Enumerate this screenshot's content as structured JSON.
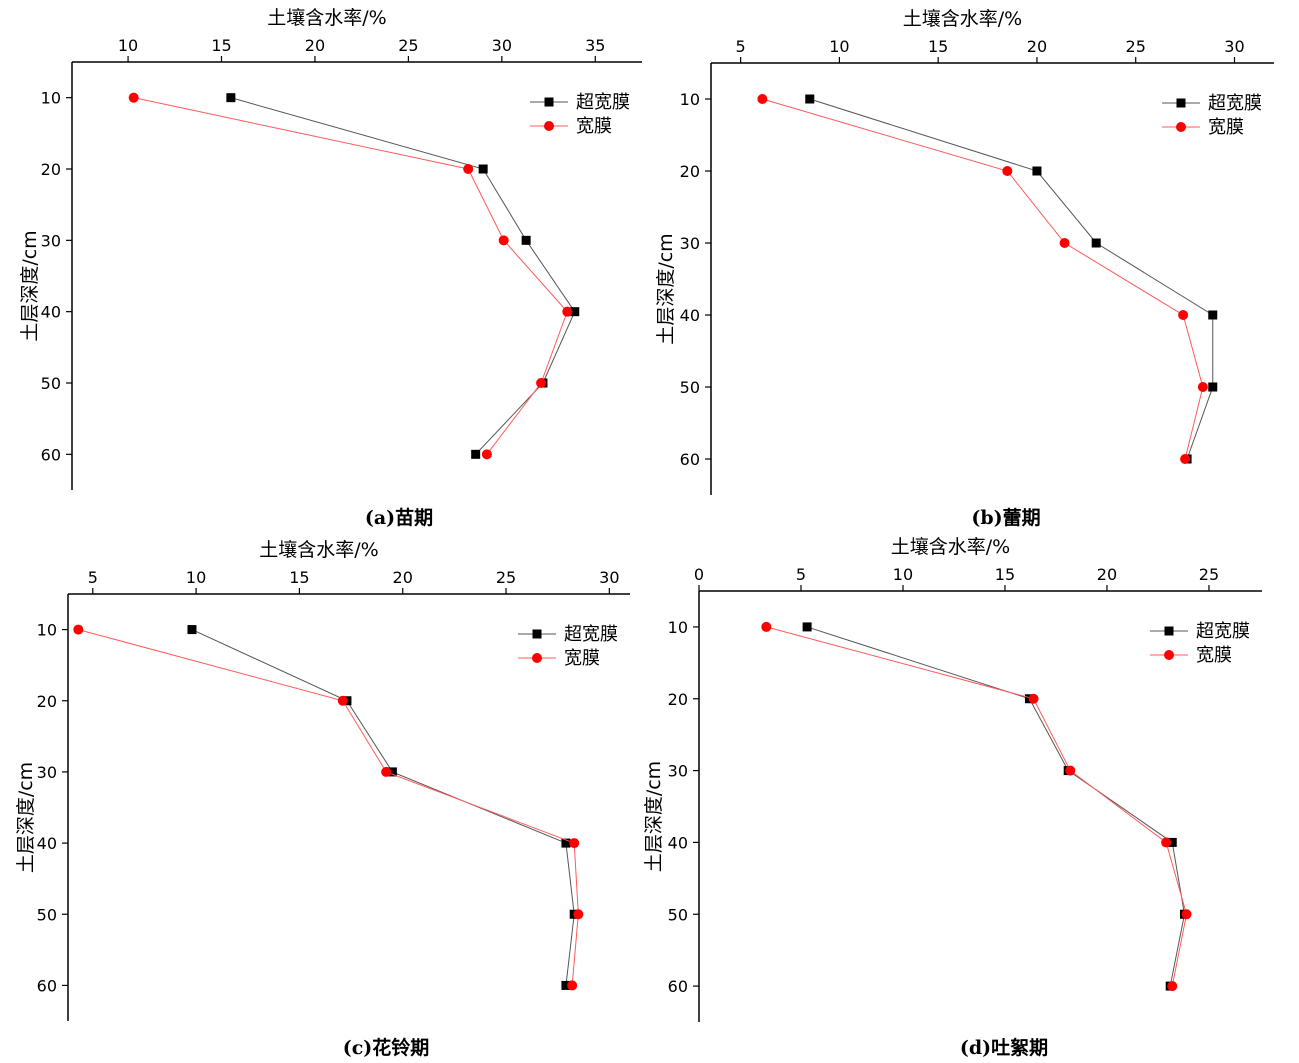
{
  "chart_data": [
    {
      "type": "line",
      "caption": "(a)苗期",
      "xlabel": "土壤含水率/%",
      "ylabel": "土层深度/cm",
      "xlim": [
        7,
        37.5
      ],
      "xticks": [
        10,
        15,
        20,
        25,
        30,
        35
      ],
      "ylim": [
        5,
        65
      ],
      "yticks": [
        10,
        20,
        30,
        40,
        50,
        60
      ],
      "legend_position": "top-right",
      "series": [
        {
          "name": "超宽膜",
          "color": "#000000",
          "marker": "square",
          "x": [
            15.5,
            29.0,
            31.3,
            33.9,
            32.2,
            28.6
          ],
          "y": [
            10,
            20,
            30,
            40,
            50,
            60
          ]
        },
        {
          "name": "宽膜",
          "color": "#ff0000",
          "marker": "circle",
          "x": [
            10.3,
            28.2,
            30.1,
            33.5,
            32.1,
            29.2
          ],
          "y": [
            10,
            20,
            30,
            40,
            50,
            60
          ]
        }
      ]
    },
    {
      "type": "line",
      "caption": "(b)蕾期",
      "xlabel": "土壤含水率/%",
      "ylabel": "土层深度/cm",
      "xlim": [
        3.5,
        32
      ],
      "xticks": [
        5,
        10,
        15,
        20,
        25,
        30
      ],
      "ylim": [
        5,
        65
      ],
      "yticks": [
        10,
        20,
        30,
        40,
        50,
        60
      ],
      "legend_position": "top-right",
      "series": [
        {
          "name": "超宽膜",
          "color": "#000000",
          "marker": "square",
          "x": [
            8.5,
            20.0,
            23.0,
            28.9,
            28.9,
            27.6
          ],
          "y": [
            10,
            20,
            30,
            40,
            50,
            60
          ]
        },
        {
          "name": "宽膜",
          "color": "#ff0000",
          "marker": "circle",
          "x": [
            6.1,
            18.5,
            21.4,
            27.4,
            28.4,
            27.5
          ],
          "y": [
            10,
            20,
            30,
            40,
            50,
            60
          ]
        }
      ]
    },
    {
      "type": "line",
      "caption": "(c)花铃期",
      "xlabel": "土壤含水率/%",
      "ylabel": "土层深度/cm",
      "xlim": [
        3.8,
        31
      ],
      "xticks": [
        5,
        10,
        15,
        20,
        25,
        30
      ],
      "ylim": [
        5,
        65
      ],
      "yticks": [
        10,
        20,
        30,
        40,
        50,
        60
      ],
      "legend_position": "top-right",
      "series": [
        {
          "name": "超宽膜",
          "color": "#000000",
          "marker": "square",
          "x": [
            9.8,
            17.3,
            19.5,
            27.9,
            28.3,
            27.9
          ],
          "y": [
            10,
            20,
            30,
            40,
            50,
            60
          ]
        },
        {
          "name": "宽膜",
          "color": "#ff0000",
          "marker": "circle",
          "x": [
            4.3,
            17.1,
            19.2,
            28.3,
            28.5,
            28.2
          ],
          "y": [
            10,
            20,
            30,
            40,
            50,
            60
          ]
        }
      ]
    },
    {
      "type": "line",
      "caption": "(d)吐絮期",
      "xlabel": "土壤含水率/%",
      "ylabel": "土层深度/cm",
      "xlim": [
        0,
        27.6
      ],
      "xticks": [
        0,
        5,
        10,
        15,
        20,
        25
      ],
      "ylim": [
        5,
        65
      ],
      "yticks": [
        10,
        20,
        30,
        40,
        50,
        60
      ],
      "legend_position": "top-right",
      "series": [
        {
          "name": "超宽膜",
          "color": "#000000",
          "marker": "square",
          "x": [
            5.3,
            16.2,
            18.1,
            23.2,
            23.8,
            23.1
          ],
          "y": [
            10,
            20,
            30,
            40,
            50,
            60
          ]
        },
        {
          "name": "宽膜",
          "color": "#ff0000",
          "marker": "circle",
          "x": [
            3.3,
            16.4,
            18.2,
            22.9,
            23.9,
            23.2
          ],
          "y": [
            10,
            20,
            30,
            40,
            50,
            60
          ]
        }
      ]
    }
  ]
}
